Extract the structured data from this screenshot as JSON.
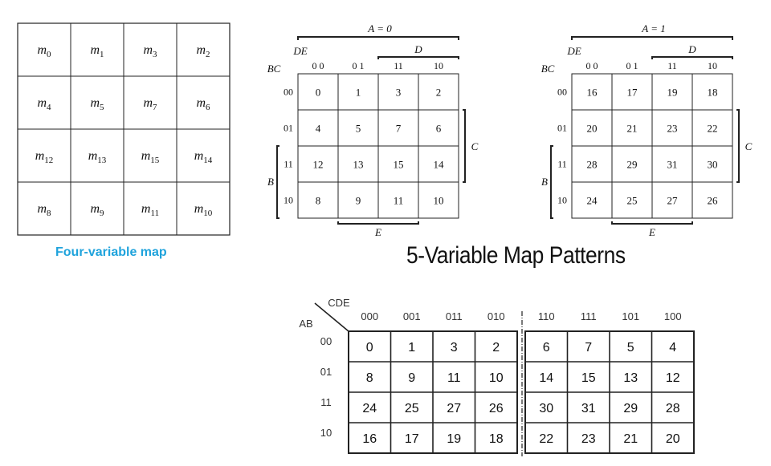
{
  "four_var_map": {
    "caption": "Four-variable map",
    "cells": [
      [
        {
          "base": "m",
          "sub": "0"
        },
        {
          "base": "m",
          "sub": "1"
        },
        {
          "base": "m",
          "sub": "3"
        },
        {
          "base": "m",
          "sub": "2"
        }
      ],
      [
        {
          "base": "m",
          "sub": "4"
        },
        {
          "base": "m",
          "sub": "5"
        },
        {
          "base": "m",
          "sub": "7"
        },
        {
          "base": "m",
          "sub": "6"
        }
      ],
      [
        {
          "base": "m",
          "sub": "12"
        },
        {
          "base": "m",
          "sub": "13"
        },
        {
          "base": "m",
          "sub": "15"
        },
        {
          "base": "m",
          "sub": "14"
        }
      ],
      [
        {
          "base": "m",
          "sub": "8"
        },
        {
          "base": "m",
          "sub": "9"
        },
        {
          "base": "m",
          "sub": "11"
        },
        {
          "base": "m",
          "sub": "10"
        }
      ]
    ]
  },
  "title": "5-Variable Map Patterns",
  "map_a0": {
    "header": "A = 0",
    "col_var": "DE",
    "row_var": "BC",
    "col_labels": [
      "0 0",
      "0 1",
      "11",
      "10"
    ],
    "row_labels": [
      "00",
      "01",
      "11",
      "10"
    ],
    "cells": [
      [
        "0",
        "1",
        "3",
        "2"
      ],
      [
        "4",
        "5",
        "7",
        "6"
      ],
      [
        "12",
        "13",
        "15",
        "14"
      ],
      [
        "8",
        "9",
        "11",
        "10"
      ]
    ],
    "bracket_d": "D",
    "bracket_c": "C",
    "bracket_b": "B",
    "bracket_e": "E"
  },
  "map_a1": {
    "header": "A = 1",
    "col_var": "DE",
    "row_var": "BC",
    "col_labels": [
      "0 0",
      "0 1",
      "11",
      "10"
    ],
    "row_labels": [
      "00",
      "01",
      "11",
      "10"
    ],
    "cells": [
      [
        "16",
        "17",
        "19",
        "18"
      ],
      [
        "20",
        "21",
        "23",
        "22"
      ],
      [
        "28",
        "29",
        "31",
        "30"
      ],
      [
        "24",
        "25",
        "27",
        "26"
      ]
    ],
    "bracket_d": "D",
    "bracket_c": "C",
    "bracket_b": "B",
    "bracket_e": "E"
  },
  "map_gray": {
    "col_var": "CDE",
    "row_var": "AB",
    "col_labels": [
      "000",
      "001",
      "011",
      "010",
      "110",
      "111",
      "101",
      "100"
    ],
    "row_labels": [
      "00",
      "01",
      "11",
      "10"
    ],
    "cells": [
      [
        "0",
        "1",
        "3",
        "2",
        "6",
        "7",
        "5",
        "4"
      ],
      [
        "8",
        "9",
        "11",
        "10",
        "14",
        "15",
        "13",
        "12"
      ],
      [
        "24",
        "25",
        "27",
        "26",
        "30",
        "31",
        "29",
        "28"
      ],
      [
        "16",
        "17",
        "19",
        "18",
        "22",
        "23",
        "21",
        "20"
      ]
    ]
  },
  "colors": {
    "caption": "#1fa3dc",
    "line": "#222222"
  }
}
